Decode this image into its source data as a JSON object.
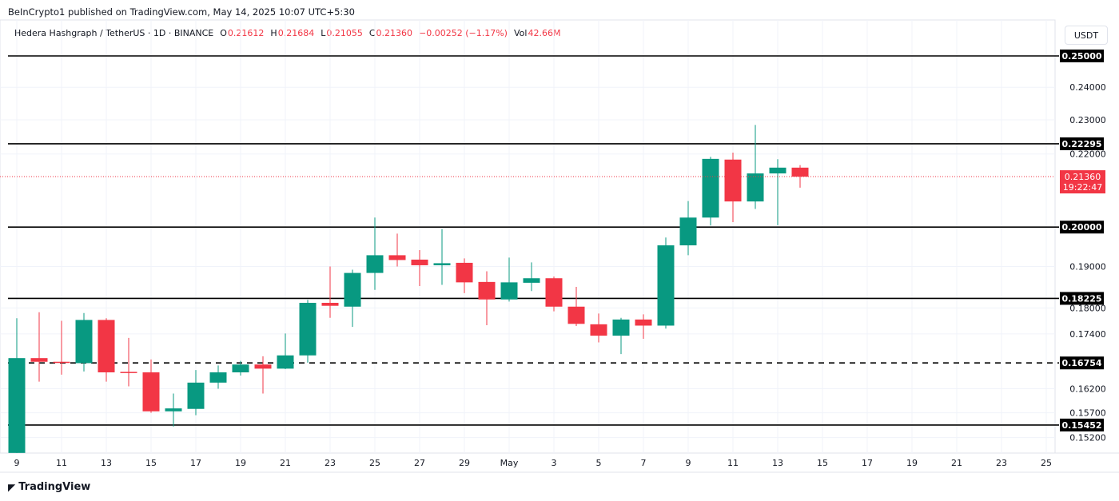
{
  "header": {
    "published": "BeInCrypto1 published on TradingView.com, May 14, 2025 10:07 UTC+5:30",
    "symbol": "Hedera Hashgraph / TetherUS · 1D · BINANCE",
    "o_label": "O",
    "o": "0.21612",
    "h_label": "H",
    "h": "0.21684",
    "l_label": "L",
    "l": "0.21055",
    "c_label": "C",
    "c": "0.21360",
    "change": "−0.00252 (−1.17%)",
    "vol_label": "Vol",
    "vol": "42.66M",
    "currency": "USDT"
  },
  "footer": {
    "logo": "TradingView"
  },
  "colors": {
    "up": "#089981",
    "down": "#f23645",
    "level": "#000000"
  },
  "chart_data": {
    "type": "candlestick",
    "scale": "log",
    "grid": true,
    "ylim": [
      0.149,
      0.262
    ],
    "y_ticks": [
      "0.24000",
      "0.23000",
      "0.22000",
      "0.19000",
      "0.18000",
      "0.17400",
      "0.16200",
      "0.15700",
      "0.15200"
    ],
    "x_ticks": [
      "9",
      "11",
      "13",
      "15",
      "17",
      "19",
      "21",
      "23",
      "25",
      "27",
      "29",
      "May",
      "3",
      "5",
      "7",
      "9",
      "11",
      "13",
      "15",
      "17",
      "19",
      "21",
      "23",
      "25"
    ],
    "levels": [
      {
        "value": 0.25,
        "label": "0.25000",
        "style": "solid"
      },
      {
        "value": 0.22295,
        "label": "0.22295",
        "style": "solid"
      },
      {
        "value": 0.2,
        "label": "0.20000",
        "style": "solid"
      },
      {
        "value": 0.18225,
        "label": "0.18225",
        "style": "solid"
      },
      {
        "value": 0.16754,
        "label": "0.16754",
        "style": "dashed"
      },
      {
        "value": 0.15452,
        "label": "0.15452",
        "style": "solid"
      }
    ],
    "last_price": {
      "value": 0.2136,
      "label": "0.21360",
      "countdown": "19:22:47"
    },
    "candles": [
      {
        "date": "Apr 9",
        "o": 0.149,
        "h": 0.1776,
        "l": 0.149,
        "c": 0.1686
      },
      {
        "date": "Apr 10",
        "o": 0.1686,
        "h": 0.179,
        "l": 0.1635,
        "c": 0.1678
      },
      {
        "date": "Apr 11",
        "o": 0.1678,
        "h": 0.177,
        "l": 0.165,
        "c": 0.1676
      },
      {
        "date": "Apr 12",
        "o": 0.1675,
        "h": 0.1788,
        "l": 0.1657,
        "c": 0.1772
      },
      {
        "date": "Apr 13",
        "o": 0.1772,
        "h": 0.1776,
        "l": 0.1635,
        "c": 0.1655
      },
      {
        "date": "Apr 14",
        "o": 0.1656,
        "h": 0.1731,
        "l": 0.1625,
        "c": 0.1655
      },
      {
        "date": "Apr 15",
        "o": 0.1655,
        "h": 0.1683,
        "l": 0.157,
        "c": 0.1573
      },
      {
        "date": "Apr 16",
        "o": 0.1573,
        "h": 0.161,
        "l": 0.1542,
        "c": 0.1579
      },
      {
        "date": "Apr 17",
        "o": 0.1578,
        "h": 0.166,
        "l": 0.1565,
        "c": 0.1633
      },
      {
        "date": "Apr 18",
        "o": 0.1633,
        "h": 0.167,
        "l": 0.162,
        "c": 0.1655
      },
      {
        "date": "Apr 19",
        "o": 0.1655,
        "h": 0.168,
        "l": 0.1648,
        "c": 0.1672
      },
      {
        "date": "Apr 20",
        "o": 0.1672,
        "h": 0.169,
        "l": 0.161,
        "c": 0.1663
      },
      {
        "date": "Apr 21",
        "o": 0.1663,
        "h": 0.1741,
        "l": 0.1662,
        "c": 0.1692
      },
      {
        "date": "Apr 22",
        "o": 0.1692,
        "h": 0.1819,
        "l": 0.1676,
        "c": 0.1812
      },
      {
        "date": "Apr 23",
        "o": 0.1812,
        "h": 0.19,
        "l": 0.1777,
        "c": 0.1805
      },
      {
        "date": "Apr 24",
        "o": 0.1803,
        "h": 0.1892,
        "l": 0.1756,
        "c": 0.1884
      },
      {
        "date": "Apr 25",
        "o": 0.1884,
        "h": 0.2025,
        "l": 0.1843,
        "c": 0.1928
      },
      {
        "date": "Apr 26",
        "o": 0.1928,
        "h": 0.1983,
        "l": 0.19,
        "c": 0.1916
      },
      {
        "date": "Apr 27",
        "o": 0.1917,
        "h": 0.1941,
        "l": 0.1852,
        "c": 0.1903
      },
      {
        "date": "Apr 28",
        "o": 0.1903,
        "h": 0.1995,
        "l": 0.1855,
        "c": 0.1908
      },
      {
        "date": "Apr 29",
        "o": 0.1909,
        "h": 0.192,
        "l": 0.1835,
        "c": 0.1861
      },
      {
        "date": "Apr 30",
        "o": 0.1862,
        "h": 0.1888,
        "l": 0.176,
        "c": 0.182
      },
      {
        "date": "May 1",
        "o": 0.182,
        "h": 0.1922,
        "l": 0.1815,
        "c": 0.1861
      },
      {
        "date": "May 2",
        "o": 0.186,
        "h": 0.191,
        "l": 0.184,
        "c": 0.1871
      },
      {
        "date": "May 3",
        "o": 0.1871,
        "h": 0.1875,
        "l": 0.1792,
        "c": 0.1803
      },
      {
        "date": "May 4",
        "o": 0.1803,
        "h": 0.185,
        "l": 0.1758,
        "c": 0.1763
      },
      {
        "date": "May 5",
        "o": 0.1762,
        "h": 0.1787,
        "l": 0.1721,
        "c": 0.1736
      },
      {
        "date": "May 6",
        "o": 0.1736,
        "h": 0.1777,
        "l": 0.1695,
        "c": 0.1773
      },
      {
        "date": "May 7",
        "o": 0.1773,
        "h": 0.1785,
        "l": 0.1729,
        "c": 0.1759
      },
      {
        "date": "May 8",
        "o": 0.1759,
        "h": 0.1973,
        "l": 0.1752,
        "c": 0.1953
      },
      {
        "date": "May 9",
        "o": 0.1953,
        "h": 0.2069,
        "l": 0.1928,
        "c": 0.2025
      },
      {
        "date": "May 10",
        "o": 0.2025,
        "h": 0.2192,
        "l": 0.2004,
        "c": 0.2186
      },
      {
        "date": "May 11",
        "o": 0.2184,
        "h": 0.2204,
        "l": 0.2013,
        "c": 0.2068
      },
      {
        "date": "May 12",
        "o": 0.2068,
        "h": 0.2285,
        "l": 0.2048,
        "c": 0.2145
      },
      {
        "date": "May 13",
        "o": 0.2145,
        "h": 0.2185,
        "l": 0.2005,
        "c": 0.21612
      },
      {
        "date": "May 14",
        "o": 0.21612,
        "h": 0.21684,
        "l": 0.21055,
        "c": 0.2136
      }
    ]
  }
}
